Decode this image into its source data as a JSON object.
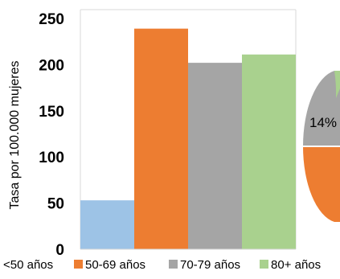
{
  "chart_data": [
    {
      "type": "bar",
      "title": "",
      "xlabel": "",
      "ylabel": "Tasa por 100.000 mujeres",
      "ylim": [
        0,
        250
      ],
      "yticks": [
        "0",
        "50",
        "100",
        "150",
        "200",
        "250"
      ],
      "grid": false,
      "legend": "bottom",
      "categories": [
        "<50 años",
        "50-69 años",
        "70-79 años",
        "80+ años"
      ],
      "values": [
        53,
        239,
        202,
        211
      ],
      "colors": [
        "#9dc3e6",
        "#ed7d31",
        "#a5a5a5",
        "#a9d18e"
      ]
    },
    {
      "type": "pie",
      "note": "partially visible, cut off at right edge",
      "labels": [
        "14%"
      ],
      "colors": [
        "#a5a5a5",
        "#ed7d31",
        "#a9d18e"
      ]
    }
  ]
}
